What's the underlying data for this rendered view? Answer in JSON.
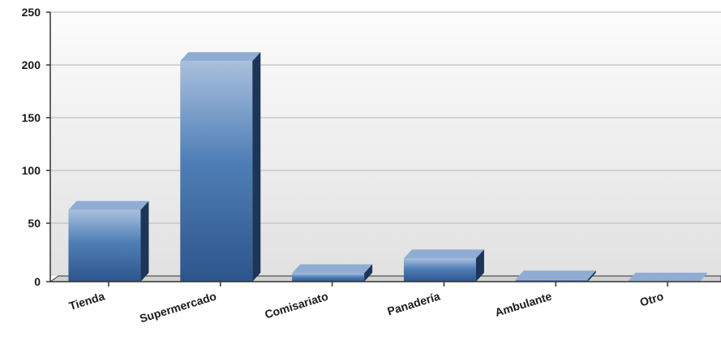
{
  "chart_data": {
    "type": "bar",
    "title": "",
    "xlabel": "",
    "ylabel": "",
    "categories": [
      "Tienda",
      "Supermercado",
      "Comisariato",
      "Panadería",
      "Ambulante",
      "Otro"
    ],
    "values": [
      68,
      209,
      8,
      22,
      2,
      0
    ],
    "ylim": [
      0,
      250
    ],
    "yticks": [
      0,
      50,
      100,
      150,
      200,
      250
    ],
    "grid": true,
    "legend": "none",
    "colors": {
      "bar_front_light": "#a9c0dd",
      "bar_front_mid": "#4f7fb6",
      "bar_front_dark": "#2c558c",
      "bar_top": "#8fadd2",
      "bar_side": "#1c3559",
      "background_top": "#fcfcfc",
      "background_bottom": "#e1e1e1",
      "gridline": "#c9c9c9",
      "axis": "#333333"
    }
  }
}
